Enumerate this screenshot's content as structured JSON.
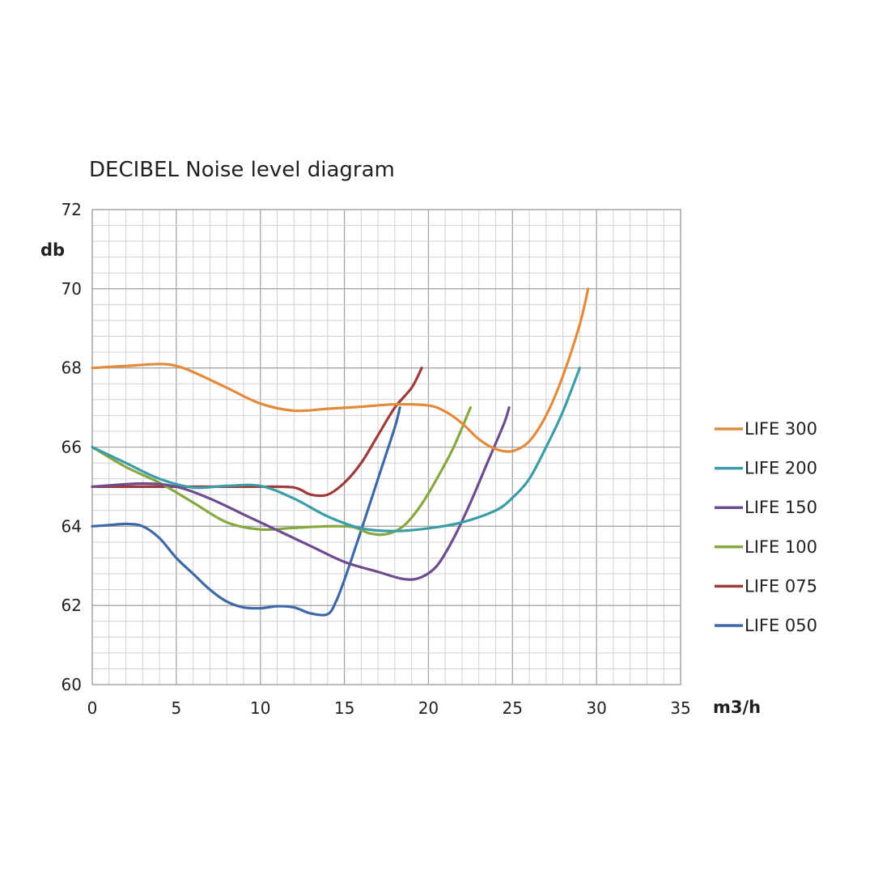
{
  "chart_data": {
    "type": "line",
    "title": "DECIBEL Noise level diagram",
    "xlabel": "m3/h",
    "ylabel": "db",
    "xlim": [
      0,
      35
    ],
    "ylim": [
      60,
      72
    ],
    "xticks": [
      0,
      5,
      10,
      15,
      20,
      25,
      30,
      35
    ],
    "yticks": [
      60,
      62,
      64,
      66,
      68,
      70,
      72
    ],
    "grid": true,
    "legend_position": "right",
    "series": [
      {
        "name": "LIFE 300",
        "color": "#e38b3b",
        "points": [
          [
            0,
            68
          ],
          [
            2,
            68.05
          ],
          [
            4,
            68.1
          ],
          [
            5,
            68.05
          ],
          [
            6,
            67.9
          ],
          [
            8,
            67.5
          ],
          [
            10,
            67.1
          ],
          [
            12,
            66.92
          ],
          [
            14,
            66.97
          ],
          [
            16,
            67.02
          ],
          [
            18,
            67.08
          ],
          [
            20,
            67.05
          ],
          [
            21,
            66.9
          ],
          [
            22,
            66.6
          ],
          [
            23,
            66.2
          ],
          [
            24,
            65.95
          ],
          [
            25,
            65.9
          ],
          [
            26,
            66.15
          ],
          [
            27,
            66.8
          ],
          [
            28,
            67.8
          ],
          [
            29,
            69.1
          ],
          [
            29.5,
            70
          ]
        ]
      },
      {
        "name": "LIFE 200",
        "color": "#3a9da8",
        "points": [
          [
            0,
            66
          ],
          [
            2,
            65.6
          ],
          [
            4,
            65.2
          ],
          [
            6,
            64.98
          ],
          [
            8,
            65.02
          ],
          [
            10,
            65.02
          ],
          [
            12,
            64.7
          ],
          [
            14,
            64.25
          ],
          [
            16,
            63.95
          ],
          [
            18,
            63.88
          ],
          [
            20,
            63.95
          ],
          [
            22,
            64.1
          ],
          [
            24,
            64.4
          ],
          [
            25,
            64.72
          ],
          [
            26,
            65.2
          ],
          [
            27,
            66
          ],
          [
            28,
            66.9
          ],
          [
            29,
            68
          ]
        ]
      },
      {
        "name": "LIFE 150",
        "color": "#6e4c90",
        "points": [
          [
            0,
            65
          ],
          [
            3,
            65.08
          ],
          [
            5,
            65
          ],
          [
            7,
            64.7
          ],
          [
            9,
            64.3
          ],
          [
            11,
            63.9
          ],
          [
            13,
            63.5
          ],
          [
            15,
            63.1
          ],
          [
            17,
            62.85
          ],
          [
            18.5,
            62.67
          ],
          [
            19.5,
            62.7
          ],
          [
            20.5,
            63
          ],
          [
            21.5,
            63.7
          ],
          [
            22.5,
            64.6
          ],
          [
            23.5,
            65.6
          ],
          [
            24.5,
            66.6
          ],
          [
            24.8,
            67
          ]
        ]
      },
      {
        "name": "LIFE 100",
        "color": "#86a83f",
        "points": [
          [
            0,
            66
          ],
          [
            2,
            65.5
          ],
          [
            4,
            65.1
          ],
          [
            6,
            64.6
          ],
          [
            8,
            64.1
          ],
          [
            10,
            63.92
          ],
          [
            12,
            63.96
          ],
          [
            14,
            64
          ],
          [
            15.5,
            63.98
          ],
          [
            16.5,
            63.82
          ],
          [
            17.5,
            63.8
          ],
          [
            18.5,
            64
          ],
          [
            19.5,
            64.5
          ],
          [
            20.5,
            65.2
          ],
          [
            21.5,
            66
          ],
          [
            22.5,
            67
          ]
        ]
      },
      {
        "name": "LIFE 075",
        "color": "#9e3b39",
        "points": [
          [
            0,
            65
          ],
          [
            4,
            65
          ],
          [
            8,
            65
          ],
          [
            10,
            65
          ],
          [
            12,
            64.98
          ],
          [
            13,
            64.8
          ],
          [
            14,
            64.8
          ],
          [
            15,
            65.1
          ],
          [
            16,
            65.6
          ],
          [
            17,
            66.3
          ],
          [
            18,
            67
          ],
          [
            19,
            67.5
          ],
          [
            19.6,
            68
          ]
        ]
      },
      {
        "name": "LIFE 050",
        "color": "#3f69a6",
        "points": [
          [
            0,
            64
          ],
          [
            1,
            64.03
          ],
          [
            2,
            64.06
          ],
          [
            3,
            64
          ],
          [
            4,
            63.7
          ],
          [
            5,
            63.2
          ],
          [
            6,
            62.8
          ],
          [
            7,
            62.4
          ],
          [
            8,
            62.1
          ],
          [
            9,
            61.95
          ],
          [
            10,
            61.93
          ],
          [
            11,
            61.98
          ],
          [
            12,
            61.95
          ],
          [
            13,
            61.8
          ],
          [
            14,
            61.78
          ],
          [
            14.5,
            62.1
          ],
          [
            15,
            62.65
          ],
          [
            16,
            63.9
          ],
          [
            17,
            65.2
          ],
          [
            18,
            66.5
          ],
          [
            18.3,
            67
          ]
        ]
      }
    ]
  }
}
